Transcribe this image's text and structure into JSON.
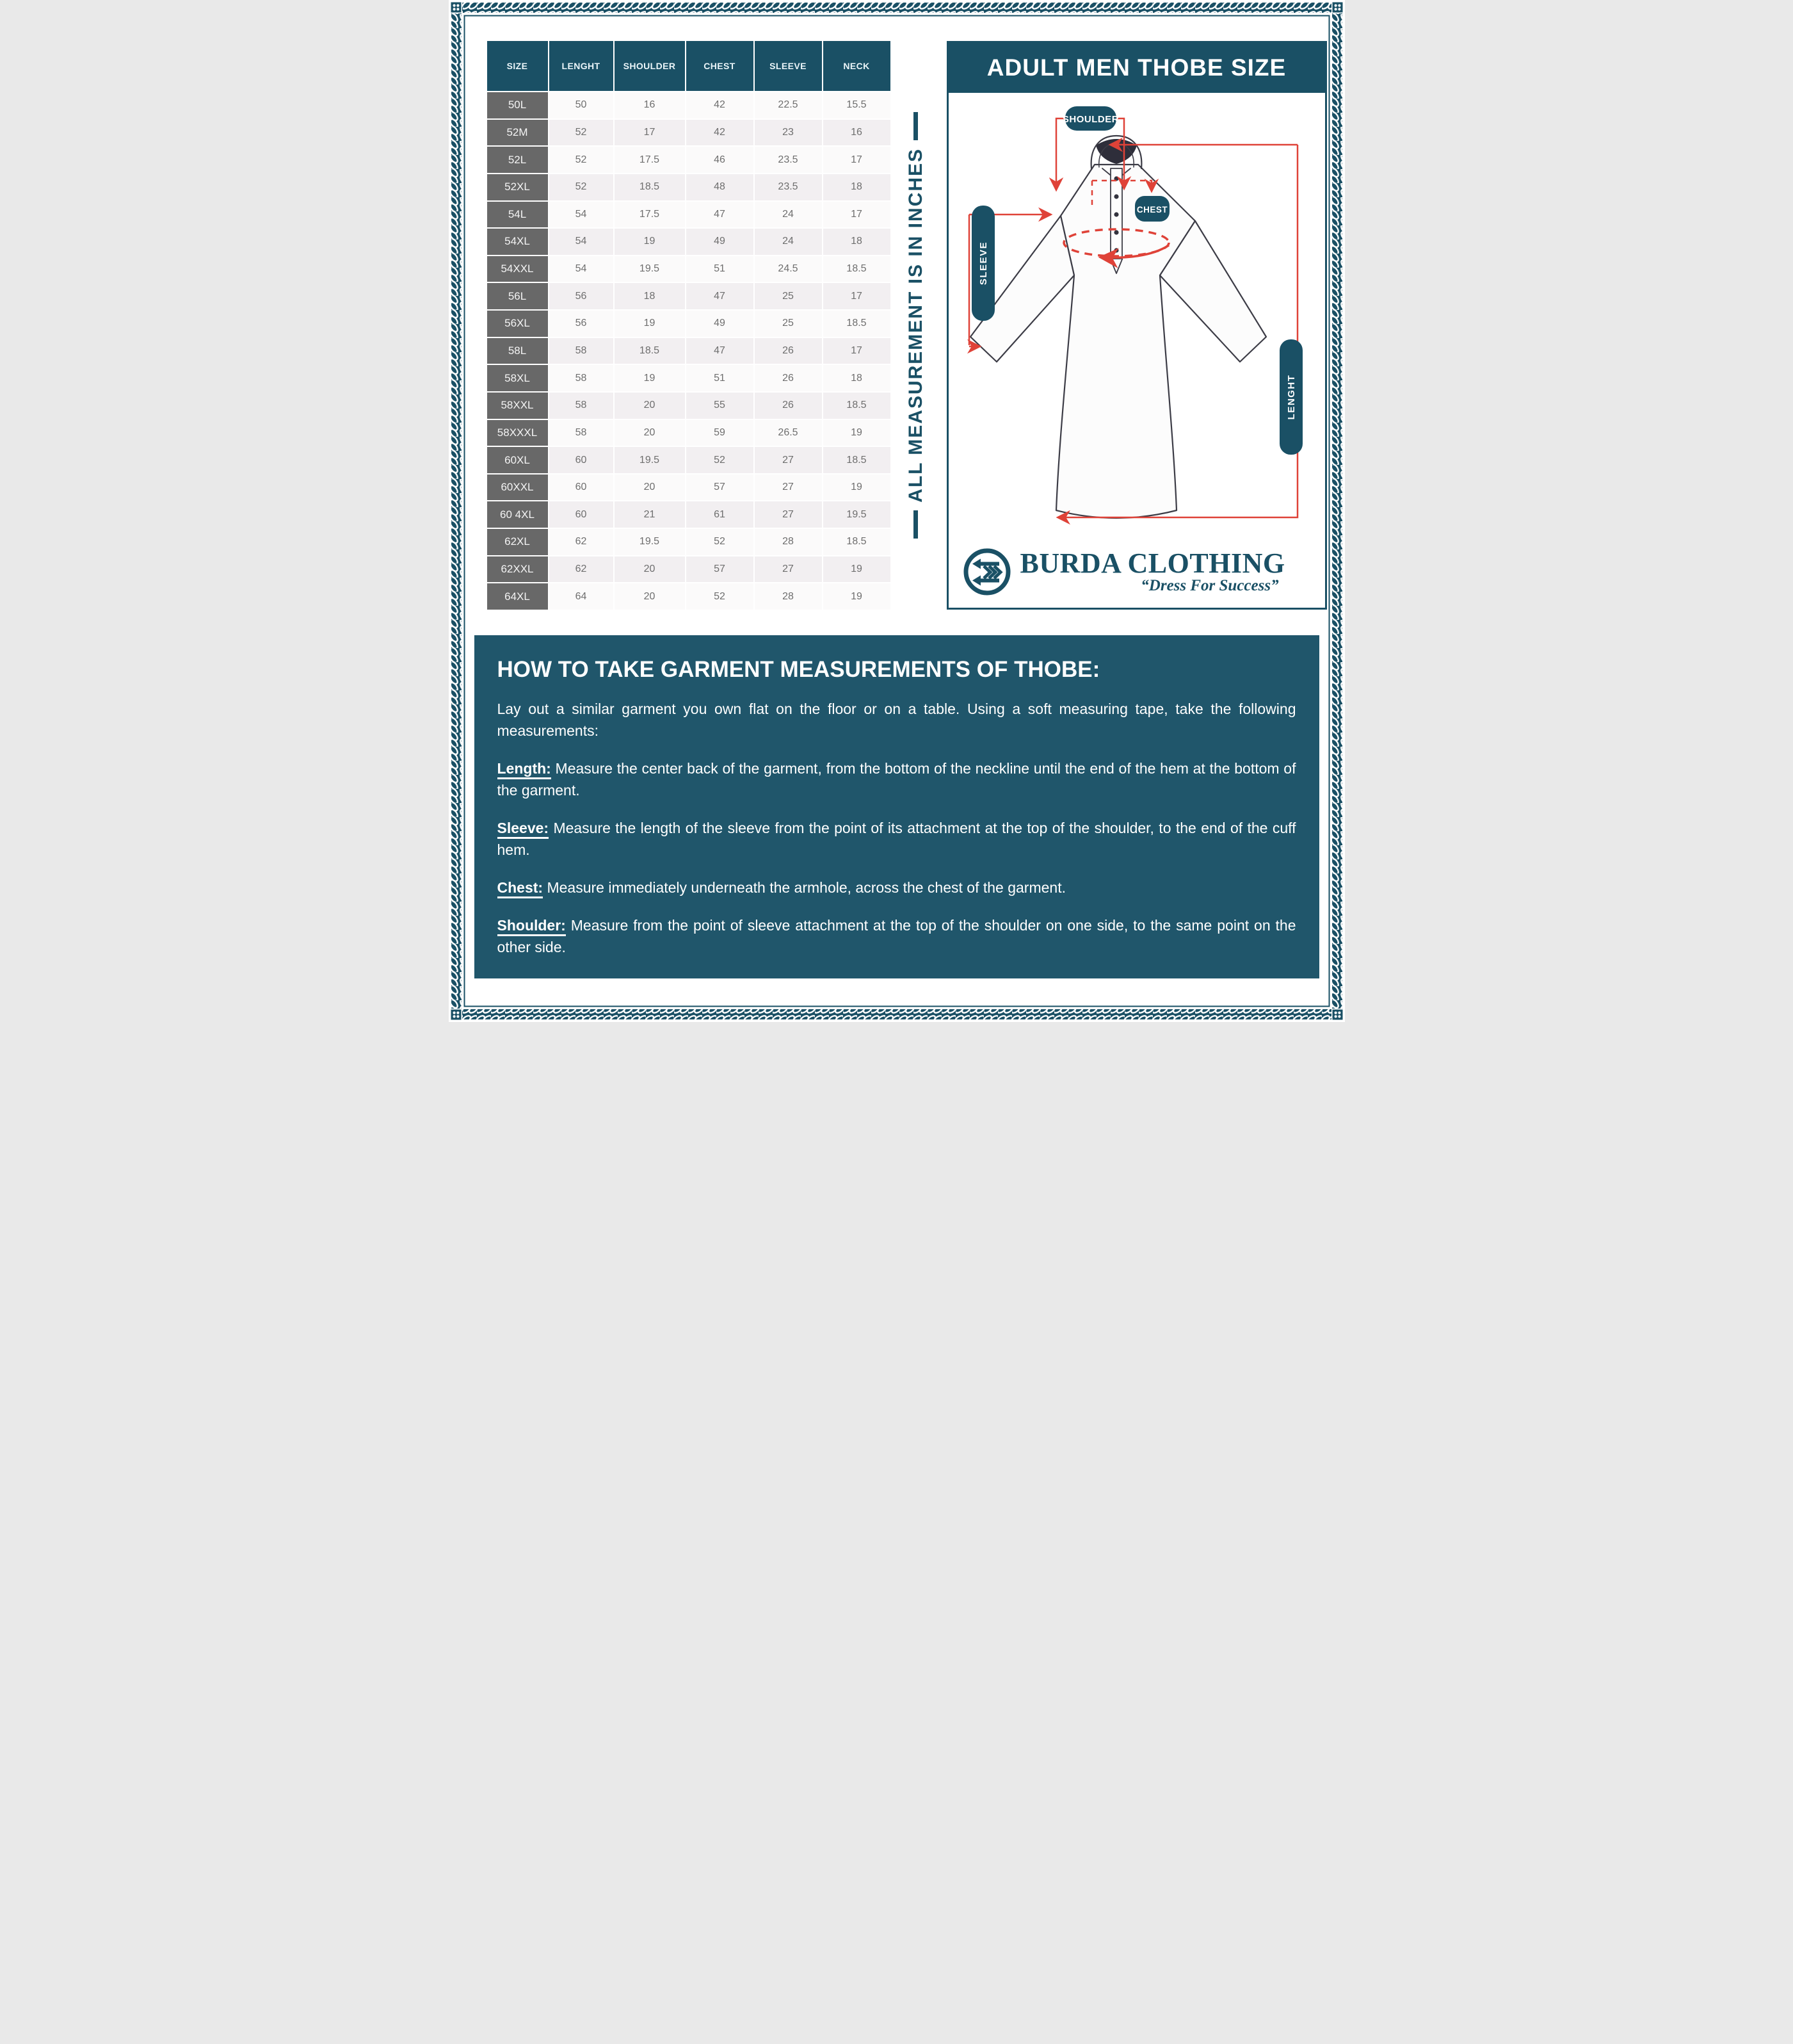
{
  "colors": {
    "teal": "#1a5065",
    "panel_teal": "#20566b",
    "red": "#df4238",
    "row_label_gray": "#686868"
  },
  "size_table": {
    "columns": [
      "SIZE",
      "LENGHT",
      "SHOULDER",
      "CHEST",
      "SLEEVE",
      "NECK"
    ],
    "rows": [
      [
        "50L",
        "50",
        "16",
        "42",
        "22.5",
        "15.5"
      ],
      [
        "52M",
        "52",
        "17",
        "42",
        "23",
        "16"
      ],
      [
        "52L",
        "52",
        "17.5",
        "46",
        "23.5",
        "17"
      ],
      [
        "52XL",
        "52",
        "18.5",
        "48",
        "23.5",
        "18"
      ],
      [
        "54L",
        "54",
        "17.5",
        "47",
        "24",
        "17"
      ],
      [
        "54XL",
        "54",
        "19",
        "49",
        "24",
        "18"
      ],
      [
        "54XXL",
        "54",
        "19.5",
        "51",
        "24.5",
        "18.5"
      ],
      [
        "56L",
        "56",
        "18",
        "47",
        "25",
        "17"
      ],
      [
        "56XL",
        "56",
        "19",
        "49",
        "25",
        "18.5"
      ],
      [
        "58L",
        "58",
        "18.5",
        "47",
        "26",
        "17"
      ],
      [
        "58XL",
        "58",
        "19",
        "51",
        "26",
        "18"
      ],
      [
        "58XXL",
        "58",
        "20",
        "55",
        "26",
        "18.5"
      ],
      [
        "58XXXL",
        "58",
        "20",
        "59",
        "26.5",
        "19"
      ],
      [
        "60XL",
        "60",
        "19.5",
        "52",
        "27",
        "18.5"
      ],
      [
        "60XXL",
        "60",
        "20",
        "57",
        "27",
        "19"
      ],
      [
        "60 4XL",
        "60",
        "21",
        "61",
        "27",
        "19.5"
      ],
      [
        "62XL",
        "62",
        "19.5",
        "52",
        "28",
        "18.5"
      ],
      [
        "62XXL",
        "62",
        "20",
        "57",
        "27",
        "19"
      ],
      [
        "64XL",
        "64",
        "20",
        "52",
        "28",
        "19"
      ]
    ]
  },
  "measure_note": {
    "text": "ALL MEASUREMENT IS IN INCHES"
  },
  "diagram": {
    "title": "ADULT MEN THOBE SIZE",
    "labels": {
      "shoulder": "SHOULDER",
      "chest": "CHEST",
      "sleeve": "SLEEVE",
      "length": "LENGHT"
    },
    "logo": {
      "name": "BURDA CLOTHING",
      "tagline": "“Dress For Success”"
    }
  },
  "instructions": {
    "heading": "HOW TO TAKE GARMENT MEASUREMENTS OF THOBE:",
    "intro": "Lay out a similar garment you own flat on the floor or on a table. Using a soft measuring tape, take the following measurements:",
    "items": [
      {
        "term": "Length:",
        "text": "Measure the center back of the garment, from the bottom of the neckline until the end of the hem at the bottom of the garment."
      },
      {
        "term": "Sleeve:",
        "text": "Measure the length of the sleeve from the point of its attachment at the top of the shoulder, to the end of the cuff hem."
      },
      {
        "term": "Chest:",
        "text": "Measure immediately underneath the armhole, across the chest of the garment."
      },
      {
        "term": "Shoulder:",
        "text": "Measure from the point of sleeve attachment at the top of the shoulder on one side, to the same point on the other side."
      }
    ]
  }
}
